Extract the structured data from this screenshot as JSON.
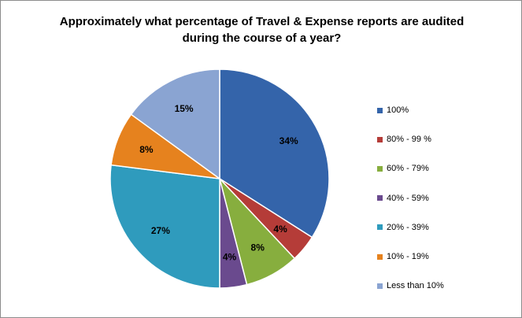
{
  "chart_data": {
    "type": "pie",
    "title_lines": [
      "Approximately what percentage of Travel & Expense reports are audited",
      "during the course of a year?"
    ],
    "start_angle_deg": 0,
    "direction": "clockwise",
    "legend_position": "right",
    "slices": [
      {
        "name": "100%",
        "value": 34,
        "label": "34%",
        "color": "#3464AA"
      },
      {
        "name": "80% - 99 %",
        "value": 4,
        "label": "4%",
        "color": "#B53C38"
      },
      {
        "name": "60% - 79%",
        "value": 8,
        "label": "8%",
        "color": "#87AE3E"
      },
      {
        "name": "40% - 59%",
        "value": 4,
        "label": "4%",
        "color": "#6A4A8E"
      },
      {
        "name": "20% - 39%",
        "value": 27,
        "label": "27%",
        "color": "#2F9BBD"
      },
      {
        "name": "10% - 19%",
        "value": 8,
        "label": "8%",
        "color": "#E6821E"
      },
      {
        "name": "Less than 10%",
        "value": 15,
        "label": "15%",
        "color": "#8AA4D2"
      }
    ]
  }
}
